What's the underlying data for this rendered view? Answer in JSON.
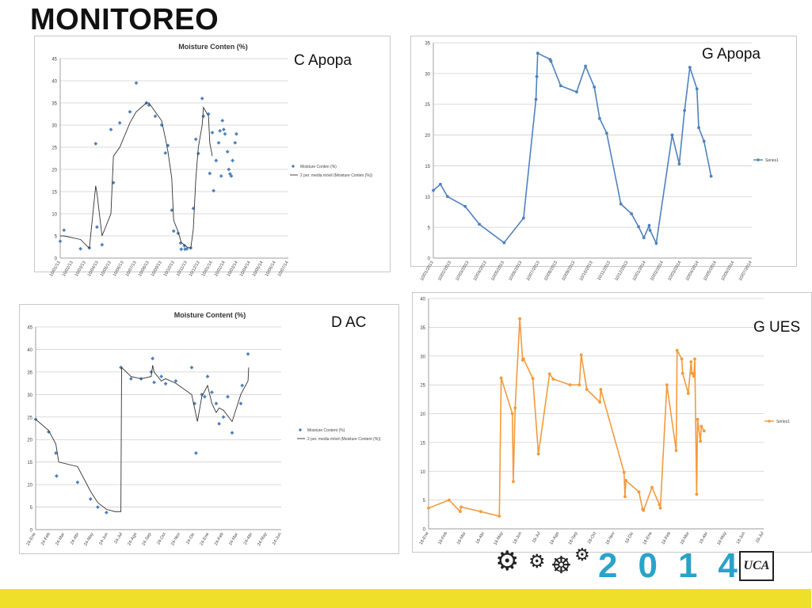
{
  "page": {
    "title": "MONITOREO"
  },
  "panels": {
    "c_apopa": {
      "label": "C Apopa"
    },
    "g_apopa": {
      "label": "G Apopa"
    },
    "d_ac": {
      "label": "D AC"
    },
    "g_ues": {
      "label": "G UES"
    }
  },
  "logo": {
    "year": "2014",
    "mark": "UCA",
    "gear_icon": "gear-icon",
    "wheel_icon": "ship-wheel-icon"
  },
  "colors": {
    "blue": "#4f81bd",
    "orange": "#f39a3c",
    "footer": "#efdf2a"
  },
  "chart_data": [
    {
      "id": "c_apopa",
      "type": "scatter",
      "title": "Moisture Conten (%)",
      "ylim": [
        0,
        45
      ],
      "yticks": [
        0,
        5,
        10,
        15,
        20,
        25,
        30,
        35,
        40,
        45
      ],
      "xticks": [
        "10/01/13",
        "10/02/13",
        "10/03/13",
        "10/04/13",
        "10/05/13",
        "10/06/13",
        "10/07/13",
        "10/08/13",
        "10/09/13",
        "10/10/13",
        "10/11/13",
        "10/12/13",
        "10/01/14",
        "10/02/14",
        "10/03/14",
        "10/04/14",
        "10/05/14",
        "10/06/14",
        "10/07/14"
      ],
      "legend": [
        "Moisture Conten (%)",
        "2 per. media móvil (Moisture Conten (%))"
      ],
      "legend_position": "right",
      "series": [
        {
          "name": "Moisture Conten (%)",
          "x": [
            0,
            0.3,
            1.6,
            2.3,
            2.8,
            2.9,
            3.3,
            4.0,
            4.2,
            4.7,
            5.5,
            6.0,
            6.8,
            7.0,
            7.5,
            8.0,
            8.3,
            8.5,
            8.8,
            8.95,
            9.3,
            9.5,
            9.55,
            9.8,
            9.85,
            10.0,
            10.3,
            10.5,
            10.7,
            10.9,
            11.2,
            11.3,
            11.7,
            11.8,
            12.0,
            12.1,
            12.3,
            12.5,
            12.6,
            12.7,
            12.8,
            12.9,
            13.0,
            13.2,
            13.3,
            13.4,
            13.5,
            13.6,
            13.8,
            13.9
          ],
          "y": [
            3.8,
            6.3,
            2.1,
            2.3,
            25.8,
            7.0,
            3.0,
            29.0,
            17.0,
            30.5,
            33.0,
            39.5,
            35.0,
            34.5,
            32.0,
            30.0,
            23.7,
            25.4,
            10.8,
            6.1,
            5.6,
            3.4,
            2.0,
            2.8,
            2.0,
            2.1,
            2.3,
            11.2,
            26.8,
            23.6,
            36.0,
            32.0,
            32.5,
            19.1,
            28.3,
            15.2,
            22.0,
            26.0,
            28.7,
            18.5,
            31.0,
            29.0,
            28.0,
            24.0,
            20.0,
            19.0,
            18.5,
            22.0,
            26.0,
            28.0
          ]
        },
        {
          "name": "2 per. media móvil (Moisture Conten (%))",
          "x": [
            0,
            0.3,
            1.6,
            2.3,
            2.8,
            2.9,
            3.3,
            4.0,
            4.2,
            4.7,
            5.5,
            6.0,
            6.8,
            7.0,
            7.5,
            8.0,
            8.3,
            8.5,
            8.8,
            8.95,
            9.3,
            9.55,
            10.0,
            10.3,
            10.5,
            10.7,
            10.9,
            11.2,
            11.3,
            11.7,
            11.8,
            12.0
          ],
          "y": [
            5.0,
            5.0,
            4.2,
            2.2,
            16.3,
            14.6,
            5.0,
            10.0,
            23.0,
            25.0,
            30.5,
            33.0,
            35.0,
            35.0,
            33.0,
            31.0,
            27.0,
            24.0,
            18.0,
            8.5,
            6.0,
            3.5,
            2.5,
            2.2,
            6.5,
            18.0,
            25.0,
            30.0,
            34.0,
            32.0,
            26.0,
            23.0
          ]
        }
      ]
    },
    {
      "id": "g_apopa",
      "type": "line",
      "title": "",
      "ylim": [
        0,
        35
      ],
      "yticks": [
        0,
        5,
        10,
        15,
        20,
        25,
        30,
        35
      ],
      "xticks": [
        "10/01/2013",
        "10/02/2013",
        "10/03/2013",
        "10/04/2013",
        "10/05/2013",
        "10/06/2013",
        "10/07/2013",
        "10/08/2013",
        "10/09/2013",
        "10/10/2013",
        "10/11/2013",
        "10/12/2013",
        "10/01/2014",
        "10/02/2014",
        "10/03/2014",
        "10/04/2014",
        "10/05/2014",
        "10/06/2014",
        "10/07/2014"
      ],
      "legend": [
        "Series1"
      ],
      "legend_position": "right",
      "series": [
        {
          "name": "Series1",
          "x": [
            0,
            0.4,
            0.8,
            1.8,
            2.6,
            4.0,
            5.1,
            5.8,
            5.85,
            5.9,
            6.6,
            6.65,
            7.2,
            8.1,
            8.6,
            9.1,
            9.4,
            9.8,
            10.6,
            11.2,
            11.6,
            11.9,
            12.2,
            12.25,
            12.6,
            13.5,
            13.9,
            14.2,
            14.5,
            14.9,
            15.0,
            15.3,
            15.7
          ],
          "y": [
            11.0,
            12.0,
            10.0,
            8.4,
            5.5,
            2.5,
            6.5,
            25.8,
            29.5,
            33.3,
            32.3,
            32.0,
            28.0,
            27.0,
            31.2,
            27.8,
            22.7,
            20.3,
            8.8,
            7.2,
            5.1,
            3.3,
            5.3,
            4.5,
            2.4,
            20.0,
            15.3,
            24.0,
            31.0,
            27.5,
            21.2,
            19.0,
            13.3
          ]
        }
      ]
    },
    {
      "id": "d_ac",
      "type": "scatter",
      "title": "Moisture Content (%)",
      "ylim": [
        0,
        45
      ],
      "yticks": [
        0,
        5,
        10,
        15,
        20,
        25,
        30,
        35,
        40,
        45
      ],
      "xticks": [
        "24-Ene",
        "24-Feb",
        "24-Mar",
        "24-Abr",
        "24-May",
        "24-Jun",
        "24-Jul",
        "24-Ago",
        "24-Sep",
        "24-Oct",
        "24-Nov",
        "24-Dic",
        "24-Ene",
        "24-Feb",
        "24-Mar",
        "24-Abr",
        "24-May",
        "24-Jun"
      ],
      "legend": [
        "Moisture Content (%)",
        "2 per. media móvil (Moisture Content (%))"
      ],
      "legend_position": "right",
      "series": [
        {
          "name": "Moisture Content (%)",
          "x": [
            0,
            0.9,
            1.4,
            1.45,
            2.9,
            3.8,
            4.3,
            4.9,
            5.9,
            6.6,
            7.3,
            8.0,
            8.1,
            8.2,
            8.7,
            9.0,
            9.7,
            10.8,
            11.0,
            11.1,
            11.5,
            11.7,
            11.9,
            12.2,
            12.5,
            12.7,
            13.0,
            13.3,
            13.6,
            14.2,
            14.3,
            14.7
          ],
          "y": [
            24.5,
            21.7,
            17.0,
            11.9,
            10.5,
            6.8,
            5.0,
            3.8,
            36.0,
            33.5,
            33.5,
            35.0,
            38.0,
            32.7,
            34.0,
            32.4,
            33.0,
            36.0,
            28.0,
            17.0,
            30.0,
            29.5,
            34.0,
            30.5,
            28.0,
            23.5,
            25.0,
            29.5,
            21.5,
            28.0,
            32.0,
            39.0
          ]
        },
        {
          "name": "2 per. media móvil (Moisture Content (%))",
          "x": [
            0,
            0.9,
            1.4,
            1.6,
            2.9,
            3.8,
            4.3,
            4.9,
            5.5,
            5.9,
            5.95,
            6.6,
            7.3,
            8.0,
            8.1,
            8.2,
            8.7,
            9.0,
            9.7,
            10.8,
            11.0,
            11.2,
            11.5,
            11.9,
            12.2,
            12.5,
            12.7,
            13.0,
            13.6,
            14.2,
            14.7,
            14.75
          ],
          "y": [
            24.5,
            22.0,
            19.0,
            15.0,
            14.0,
            8.5,
            6.0,
            4.5,
            4.0,
            4.0,
            36.0,
            34.0,
            33.5,
            34.0,
            36.5,
            35.0,
            33.0,
            33.5,
            32.5,
            30.0,
            27.0,
            24.0,
            29.5,
            32.0,
            28.0,
            26.0,
            27.0,
            26.5,
            24.0,
            30.0,
            33.0,
            36.0
          ]
        }
      ]
    },
    {
      "id": "g_ues",
      "type": "line",
      "title": "",
      "ylim": [
        0,
        40
      ],
      "yticks": [
        0,
        5,
        10,
        15,
        20,
        25,
        30,
        35,
        40
      ],
      "xticks": [
        "18-Ene",
        "18-Feb",
        "18-Mar",
        "18-Abr",
        "18-May",
        "18-Jun",
        "18-Jul",
        "18-Ago",
        "18-Sep",
        "18-Oct",
        "18-Nov",
        "18-Dic",
        "18-Ene",
        "18-Feb",
        "18-Mar",
        "18-Abr",
        "18-May",
        "18-Jun",
        "18-Jul"
      ],
      "legend": [
        "Series1"
      ],
      "legend_position": "right",
      "series": [
        {
          "name": "Series1",
          "x": [
            0,
            1.1,
            1.7,
            1.75,
            2.8,
            3.8,
            3.9,
            4.5,
            4.55,
            4.65,
            4.9,
            5.05,
            5.1,
            5.6,
            5.9,
            6.5,
            6.7,
            7.6,
            8.1,
            8.2,
            8.5,
            9.2,
            9.25,
            10.5,
            10.55,
            10.6,
            11.3,
            11.5,
            11.55,
            12.0,
            12.4,
            12.45,
            12.8,
            13.3,
            13.35,
            13.6,
            13.65,
            13.95,
            14.1,
            14.15,
            14.25,
            14.3,
            14.4,
            14.45,
            14.6,
            14.65,
            14.8
          ],
          "y": [
            3.6,
            5.0,
            3.0,
            3.8,
            3.0,
            2.2,
            26.2,
            20.0,
            8.2,
            21.0,
            36.5,
            29.3,
            29.5,
            26.1,
            13.0,
            26.9,
            26.0,
            25.0,
            25.0,
            30.2,
            24.2,
            22.0,
            24.2,
            9.8,
            5.6,
            8.4,
            6.4,
            3.4,
            3.2,
            7.2,
            4.2,
            3.6,
            25.0,
            13.6,
            31.0,
            29.5,
            27.0,
            23.5,
            29.0,
            27.0,
            26.5,
            29.5,
            6.0,
            19.0,
            15.2,
            17.8,
            17.0
          ]
        }
      ]
    }
  ]
}
